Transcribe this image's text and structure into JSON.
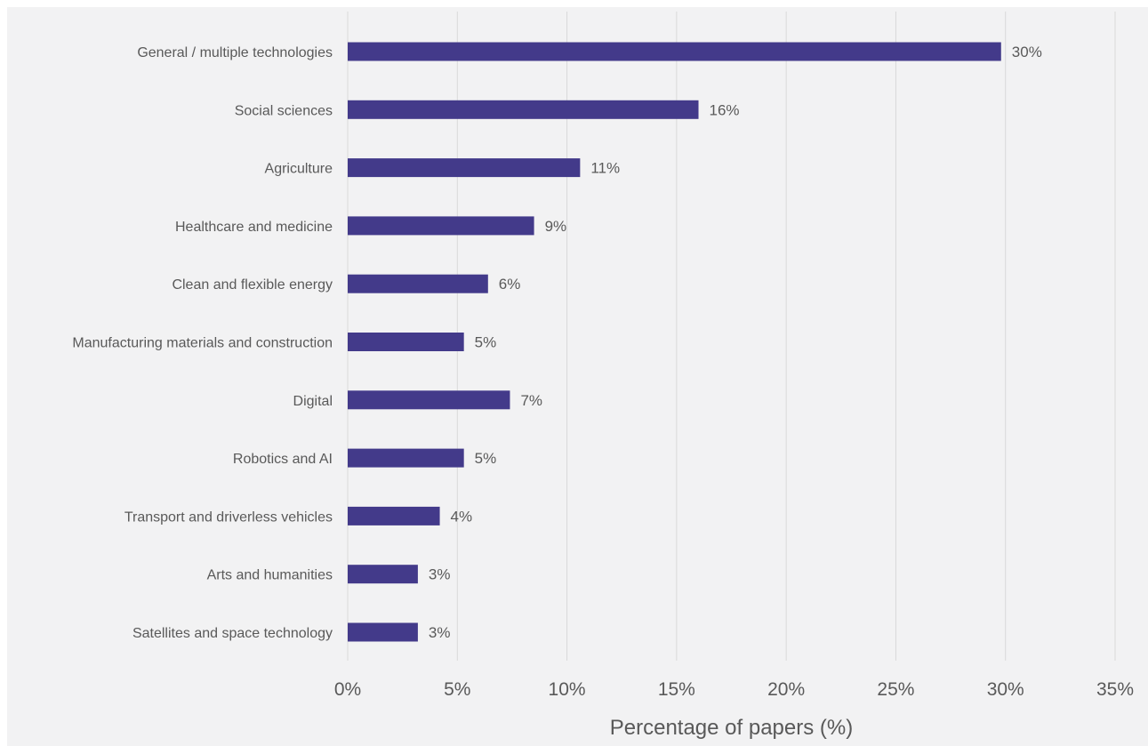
{
  "chart_data": {
    "type": "bar",
    "orientation": "horizontal",
    "categories": [
      "General / multiple technologies",
      "Social sciences",
      "Agriculture",
      "Healthcare and medicine",
      "Clean and flexible energy",
      "Manufacturing materials and construction",
      "Digital",
      "Robotics and AI",
      "Transport and driverless vehicles",
      "Arts and humanities",
      "Satellites and space technology"
    ],
    "values": [
      29.8,
      16.0,
      10.6,
      8.5,
      6.4,
      5.3,
      7.4,
      5.3,
      4.2,
      3.2,
      3.2
    ],
    "data_labels": [
      "30%",
      "16%",
      "11%",
      "9%",
      "6%",
      "5%",
      "7%",
      "5%",
      "4%",
      "3%",
      "3%"
    ],
    "title": "",
    "xlabel": "Percentage of papers (%)",
    "ylabel": "",
    "xlim": [
      0,
      35
    ],
    "x_ticks": [
      0,
      5,
      10,
      15,
      20,
      25,
      30,
      35
    ],
    "x_tick_labels": [
      "0%",
      "5%",
      "10%",
      "15%",
      "20%",
      "25%",
      "30%",
      "35%"
    ],
    "grid": "vertical",
    "legend": "none",
    "colors": {
      "bar": "#433a8a",
      "background": "#f2f2f3",
      "gridline": "#d9d9d9",
      "text": "#595959"
    }
  }
}
